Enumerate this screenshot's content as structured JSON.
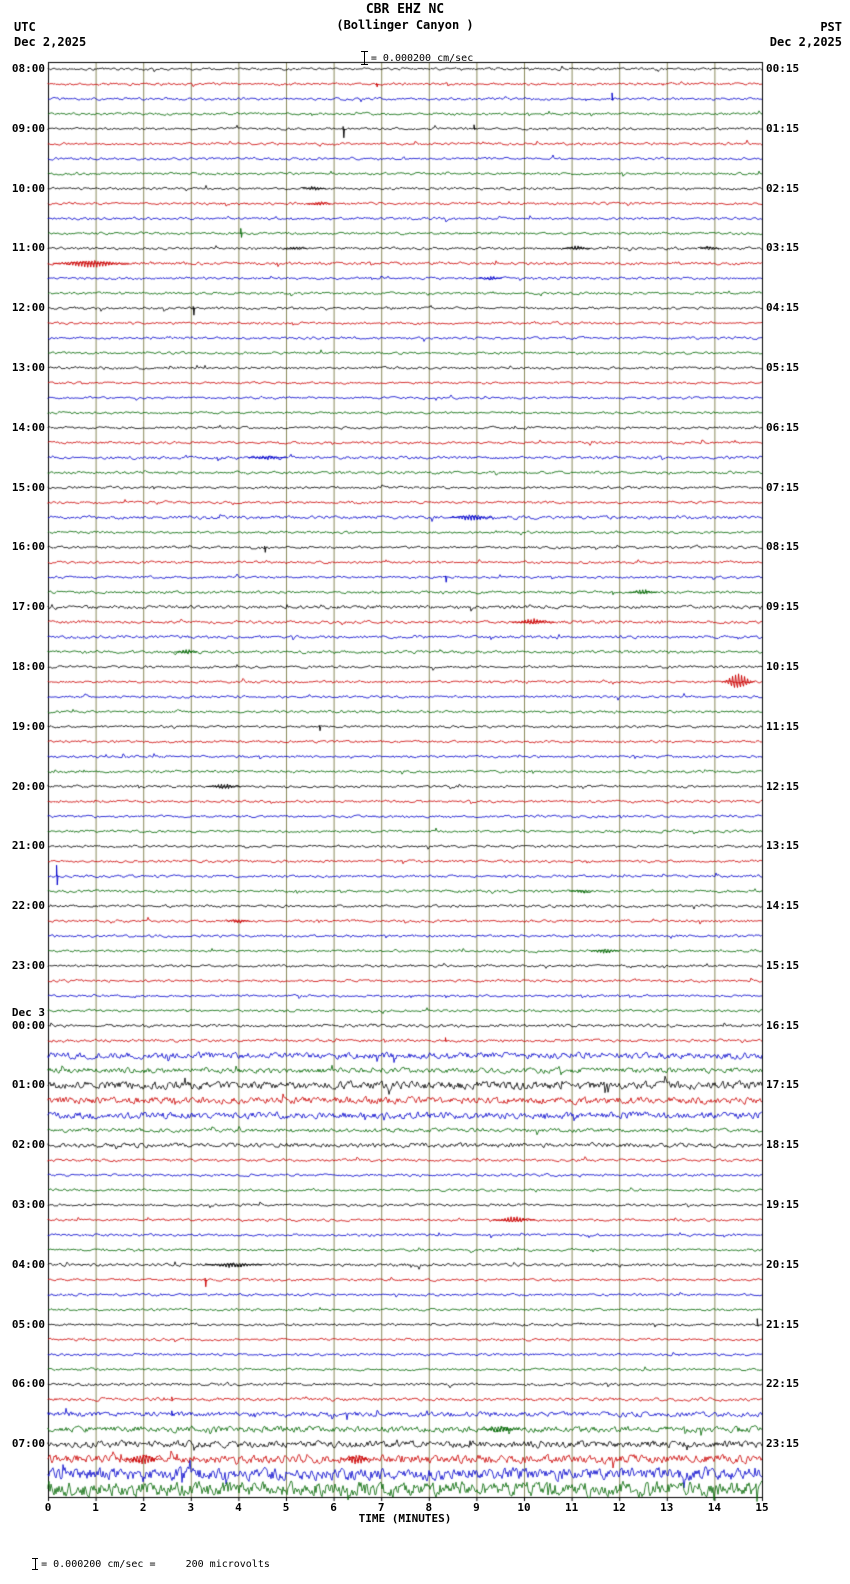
{
  "header": {
    "station": "CBR EHZ NC",
    "location": "(Bollinger Canyon )",
    "left_tz": "UTC",
    "left_date": "Dec 2,2025",
    "right_tz": "PST",
    "right_date": "Dec 2,2025",
    "scale_label": "= 0.000200 cm/sec"
  },
  "footer": {
    "xaxis_title": "TIME (MINUTES)",
    "note": "= 0.000200 cm/sec =     200 microvolts"
  },
  "chart_data": {
    "type": "line",
    "kind": "helicorder-seismogram",
    "minutes_per_line": 15,
    "lines": 96,
    "x_range": [
      0,
      15
    ],
    "x_ticks": [
      0,
      1,
      2,
      3,
      4,
      5,
      6,
      7,
      8,
      9,
      10,
      11,
      12,
      13,
      14,
      15
    ],
    "trace_color_cycle": [
      "#000000",
      "#cc0000",
      "#0000cc",
      "#006600"
    ],
    "grid_color": "#8a8a5c",
    "background_color": "#ffffff",
    "date_break": {
      "row_index": 64,
      "label": "Dec 3"
    },
    "rows": [
      {
        "u": "08:00",
        "p": "00:15"
      },
      {},
      {},
      {},
      {
        "u": "09:00",
        "p": "01:15"
      },
      {},
      {},
      {},
      {
        "u": "10:00",
        "p": "02:15"
      },
      {},
      {},
      {},
      {
        "u": "11:00",
        "p": "03:15"
      },
      {
        "a": 1.2
      },
      {},
      {},
      {
        "u": "12:00",
        "p": "04:15"
      },
      {},
      {},
      {},
      {
        "u": "13:00",
        "p": "05:15"
      },
      {
        "a": 0.9
      },
      {
        "a": 0.9
      },
      {
        "a": 0.9
      },
      {
        "u": "14:00",
        "p": "06:15"
      },
      {},
      {
        "a": 1.2
      },
      {
        "a": 1.1
      },
      {
        "u": "15:00",
        "p": "07:15"
      },
      {},
      {
        "a": 1.3
      },
      {},
      {
        "u": "16:00",
        "p": "08:15"
      },
      {},
      {},
      {
        "a": 1.1
      },
      {
        "u": "17:00",
        "p": "09:15",
        "a": 1.3
      },
      {
        "a": 1.2
      },
      {
        "a": 1.2
      },
      {
        "a": 1.2
      },
      {
        "u": "18:00",
        "p": "10:15"
      },
      {},
      {},
      {},
      {
        "u": "19:00",
        "p": "11:15"
      },
      {},
      {},
      {},
      {
        "u": "20:00",
        "p": "12:15"
      },
      {},
      {},
      {},
      {
        "u": "21:00",
        "p": "13:15"
      },
      {},
      {},
      {
        "a": 1.1
      },
      {
        "u": "22:00",
        "p": "14:15",
        "a": 1.1
      },
      {},
      {},
      {},
      {
        "u": "23:00",
        "p": "15:15"
      },
      {},
      {},
      {},
      {
        "u": "00:00",
        "p": "16:15",
        "a": 1.2
      },
      {
        "a": 1.2
      },
      {
        "a": 2.6
      },
      {
        "a": 2.2
      },
      {
        "u": "01:00",
        "p": "17:15",
        "a": 3.2
      },
      {
        "a": 2.8
      },
      {
        "a": 2.8
      },
      {
        "a": 1.6
      },
      {
        "u": "02:00",
        "p": "18:15",
        "a": 1.8
      },
      {
        "a": 1.1
      },
      {},
      {},
      {
        "u": "03:00",
        "p": "19:15"
      },
      {},
      {},
      {},
      {
        "u": "04:00",
        "p": "20:15",
        "a": 1.2
      },
      {},
      {},
      {},
      {
        "u": "05:00",
        "p": "21:15"
      },
      {},
      {},
      {},
      {
        "u": "06:00",
        "p": "22:15",
        "a": 1.1
      },
      {
        "a": 1.3
      },
      {
        "a": 2.0
      },
      {
        "a": 2.4
      },
      {
        "u": "07:00",
        "p": "23:15",
        "a": 2.8
      },
      {
        "a": 3.5
      },
      {
        "a": 5.0
      },
      {
        "a": 6.0
      }
    ],
    "events": [
      {
        "row": 1,
        "minute": 6.9,
        "amp": 3,
        "type": "spike",
        "dir": "down"
      },
      {
        "row": 2,
        "minute": 11.85,
        "amp": 6,
        "type": "spike",
        "dir": "up"
      },
      {
        "row": 4,
        "minute": 6.2,
        "amp": 9,
        "type": "spike",
        "dir": "down"
      },
      {
        "row": 4,
        "minute": 8.95,
        "amp": 4,
        "type": "spike",
        "dir": "up"
      },
      {
        "row": 8,
        "minute": 5.6,
        "amp": 2,
        "type": "burst",
        "width": 0.5
      },
      {
        "row": 9,
        "minute": 5.7,
        "amp": 2.2,
        "type": "burst",
        "width": 0.5
      },
      {
        "row": 11,
        "minute": 4.05,
        "amp": 5,
        "type": "spike",
        "dir": "both"
      },
      {
        "row": 12,
        "minute": 5.2,
        "amp": 1.8,
        "type": "burst",
        "width": 0.5
      },
      {
        "row": 12,
        "minute": 11.1,
        "amp": 2,
        "type": "burst",
        "width": 0.6
      },
      {
        "row": 12,
        "minute": 13.9,
        "amp": 2,
        "type": "burst",
        "width": 0.4
      },
      {
        "row": 13,
        "minute": 0.9,
        "amp": 4,
        "type": "burst",
        "width": 1.6
      },
      {
        "row": 14,
        "minute": 9.3,
        "amp": 1.8,
        "type": "burst",
        "width": 0.5
      },
      {
        "row": 16,
        "minute": 3.05,
        "amp": 7,
        "type": "spike",
        "dir": "down"
      },
      {
        "row": 26,
        "minute": 4.6,
        "amp": 2,
        "type": "burst",
        "width": 0.8
      },
      {
        "row": 30,
        "minute": 8.9,
        "amp": 3,
        "type": "burst",
        "width": 0.9
      },
      {
        "row": 32,
        "minute": 4.55,
        "amp": 5,
        "type": "spike",
        "dir": "down"
      },
      {
        "row": 34,
        "minute": 8.35,
        "amp": 5,
        "type": "spike",
        "dir": "down"
      },
      {
        "row": 35,
        "minute": 12.5,
        "amp": 2.5,
        "type": "burst",
        "width": 0.6
      },
      {
        "row": 37,
        "minute": 10.2,
        "amp": 3,
        "type": "burst",
        "width": 0.9
      },
      {
        "row": 39,
        "minute": 2.9,
        "amp": 2.5,
        "type": "burst",
        "width": 0.5
      },
      {
        "row": 41,
        "minute": 14.5,
        "amp": 8,
        "type": "burst",
        "width": 0.7
      },
      {
        "row": 44,
        "minute": 5.7,
        "amp": 4,
        "type": "spike",
        "dir": "down"
      },
      {
        "row": 48,
        "minute": 3.7,
        "amp": 2.5,
        "type": "burst",
        "width": 0.7
      },
      {
        "row": 54,
        "minute": 0.18,
        "amp": 11,
        "type": "spike",
        "dir": "both"
      },
      {
        "row": 55,
        "minute": 11.2,
        "amp": 2,
        "type": "burst",
        "width": 0.5
      },
      {
        "row": 57,
        "minute": 4.0,
        "amp": 2,
        "type": "burst",
        "width": 0.5
      },
      {
        "row": 59,
        "minute": 11.7,
        "amp": 2.5,
        "type": "burst",
        "width": 0.6
      },
      {
        "row": 65,
        "minute": 8.35,
        "amp": 3,
        "type": "spike",
        "dir": "up"
      },
      {
        "row": 77,
        "minute": 9.8,
        "amp": 3,
        "type": "burst",
        "width": 0.9
      },
      {
        "row": 80,
        "minute": 3.9,
        "amp": 2.5,
        "type": "burst",
        "width": 1.2
      },
      {
        "row": 81,
        "minute": 3.3,
        "amp": 7,
        "type": "spike",
        "dir": "down"
      },
      {
        "row": 84,
        "minute": 14.9,
        "amp": 6,
        "type": "spike",
        "dir": "up"
      },
      {
        "row": 89,
        "minute": 2.6,
        "amp": 2.5,
        "type": "spike",
        "dir": "up"
      },
      {
        "row": 90,
        "minute": 2.6,
        "amp": 3.5,
        "type": "spike",
        "dir": "up"
      },
      {
        "row": 91,
        "minute": 9.5,
        "amp": 3,
        "type": "burst",
        "width": 0.8
      },
      {
        "row": 93,
        "minute": 2.0,
        "amp": 5,
        "type": "burst",
        "width": 0.8
      },
      {
        "row": 93,
        "minute": 6.5,
        "amp": 5,
        "type": "burst",
        "width": 0.6
      }
    ]
  }
}
